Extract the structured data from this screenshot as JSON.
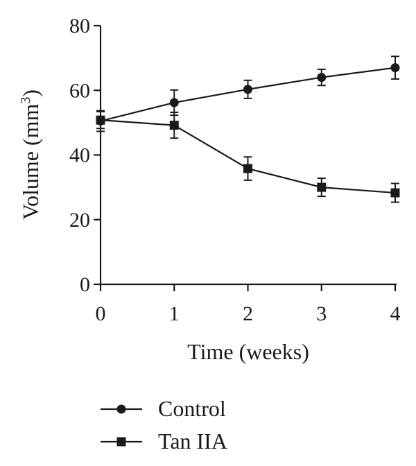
{
  "chart_data": {
    "type": "line",
    "xlabel": "Time (weeks)",
    "ylabel": {
      "text": "Volume (mm",
      "superscript": "3",
      "suffix": ")"
    },
    "x": [
      0,
      1,
      2,
      3,
      4
    ],
    "x_ticks": [
      "0",
      "1",
      "2",
      "3",
      "4"
    ],
    "ylim": [
      0,
      80
    ],
    "y_ticks": [
      "0",
      "20",
      "40",
      "60",
      "80"
    ],
    "grid": false,
    "legend_position": "bottom-left",
    "series": [
      {
        "name": "Control",
        "marker": "circle",
        "color": "#1a1a1a",
        "values": [
          50.5,
          56.2,
          60.3,
          64.0,
          67.0
        ],
        "errors": [
          3.2,
          3.9,
          2.8,
          2.5,
          3.5
        ]
      },
      {
        "name": "Tan IIA",
        "marker": "square",
        "color": "#1a1a1a",
        "values": [
          50.8,
          49.2,
          35.8,
          30.0,
          28.3
        ],
        "errors": [
          2.6,
          4.0,
          3.6,
          2.8,
          2.9
        ]
      }
    ]
  }
}
